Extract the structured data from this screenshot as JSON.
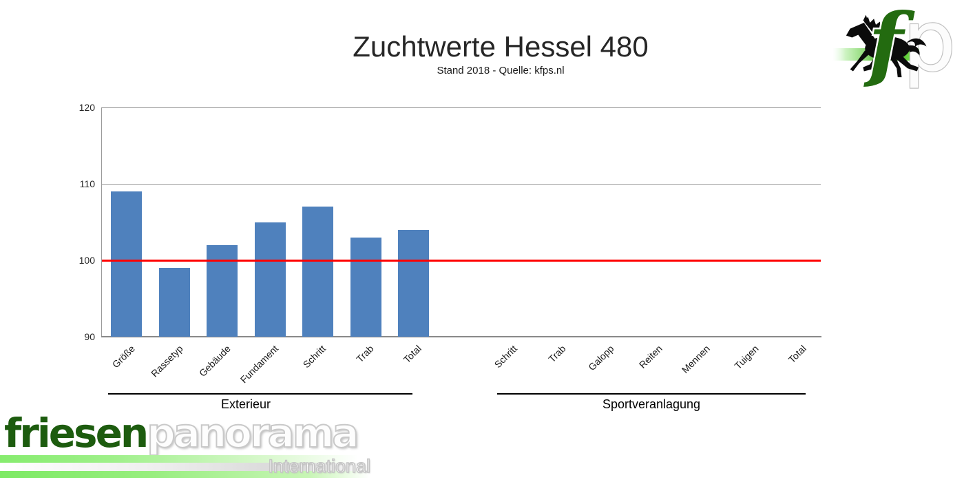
{
  "title": "Zuchtwerte Hessel 480",
  "subtitle": "Stand 2018 - Quelle: kfps.nl",
  "chart_data": {
    "type": "bar",
    "title": "Zuchtwerte Hessel 480",
    "subtitle": "Stand 2018 - Quelle: kfps.nl",
    "ylim": [
      90,
      120
    ],
    "yticks": [
      120,
      110,
      100,
      90
    ],
    "grid": true,
    "reference_line": {
      "value": 100,
      "color": "#ff0000"
    },
    "bar_color": "#4f81bd",
    "gridline_color": "#9a9a9a",
    "groups": [
      {
        "label": "Exterieur",
        "categories": [
          "Größe",
          "Rassetyp",
          "Gebäude",
          "Fundament",
          "Schritt",
          "Trab",
          "Total"
        ],
        "values": [
          109,
          99,
          102,
          105,
          107,
          103,
          104
        ]
      },
      {
        "label": "Sportveranlagung",
        "categories": [
          "Schritt",
          "Trab",
          "Galopp",
          "Reiten",
          "Mennen",
          "Tuigen",
          "Total"
        ],
        "values": [
          null,
          null,
          null,
          null,
          null,
          null,
          null
        ]
      }
    ]
  },
  "branding": {
    "logo_f": "f",
    "logo_p": "p",
    "wordmark_primary": "friesen",
    "wordmark_secondary": "panorama",
    "wordmark_sub": "International",
    "green_dark": "#1d5c0f",
    "green_band": "#7dea64"
  }
}
